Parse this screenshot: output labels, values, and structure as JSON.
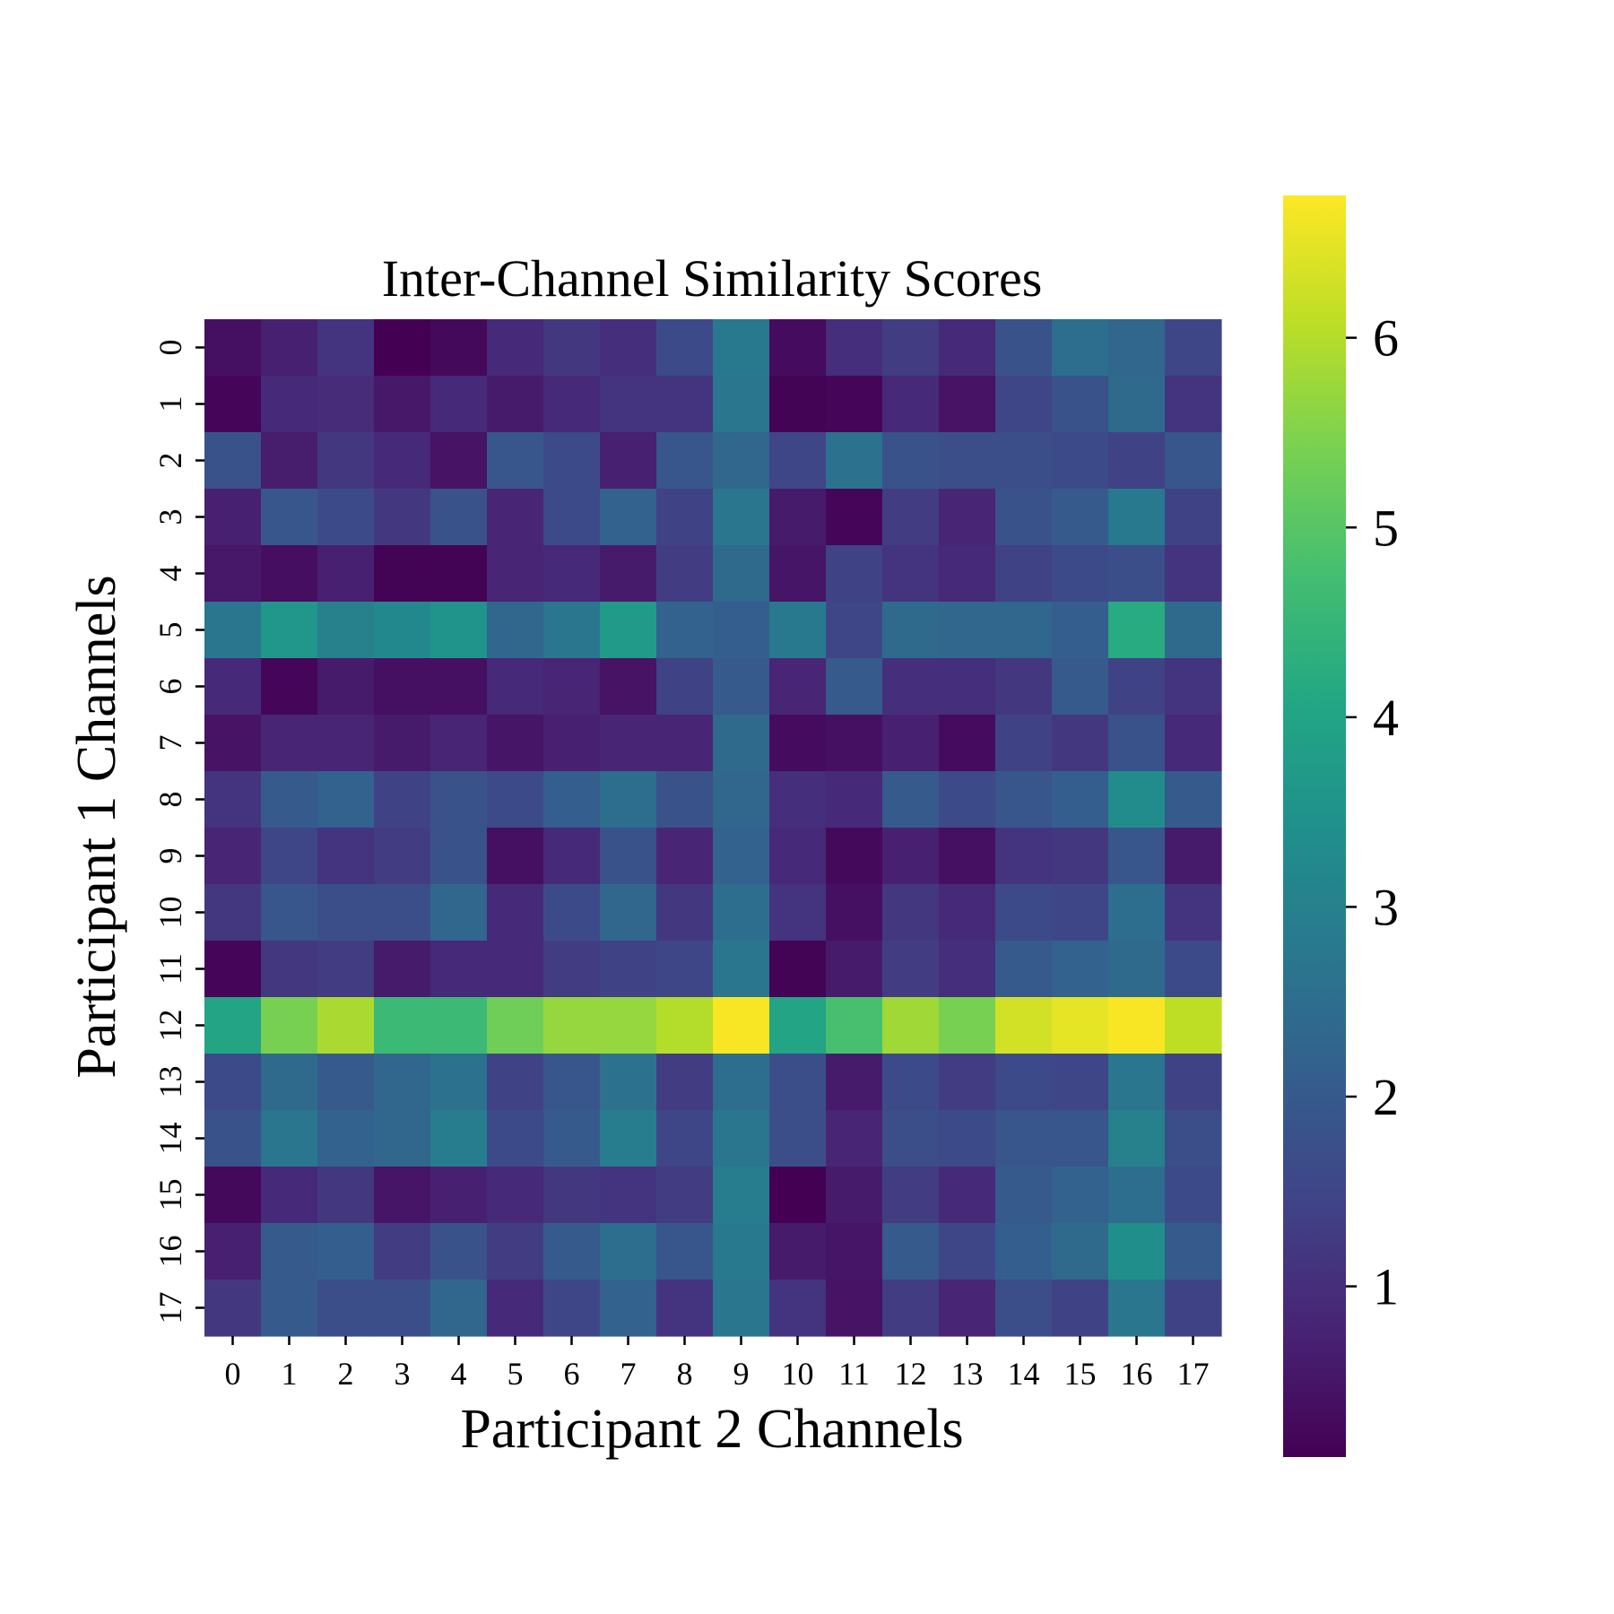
{
  "chart_data": {
    "type": "heatmap",
    "title": "Inter-Channel Similarity Scores",
    "xlabel": "Participant 2 Channels",
    "ylabel": "Participant 1 Channels",
    "x_categories": [
      "0",
      "1",
      "2",
      "3",
      "4",
      "5",
      "6",
      "7",
      "8",
      "9",
      "10",
      "11",
      "12",
      "13",
      "14",
      "15",
      "16",
      "17"
    ],
    "y_categories": [
      "0",
      "1",
      "2",
      "3",
      "4",
      "5",
      "6",
      "7",
      "8",
      "9",
      "10",
      "11",
      "12",
      "13",
      "14",
      "15",
      "16",
      "17"
    ],
    "colormap": "viridis",
    "vmin": 0.1,
    "vmax": 6.75,
    "colorbar_ticks": [
      1,
      2,
      3,
      4,
      5,
      6
    ],
    "values": [
      [
        0.4,
        0.7,
        1.1,
        0.1,
        0.25,
        0.9,
        1.2,
        1.0,
        1.6,
        2.8,
        0.3,
        1.0,
        1.3,
        0.9,
        1.8,
        2.5,
        2.3,
        1.5
      ],
      [
        0.2,
        0.9,
        0.95,
        0.55,
        0.9,
        0.6,
        0.9,
        1.1,
        1.1,
        2.7,
        0.15,
        0.2,
        0.9,
        0.45,
        1.5,
        1.8,
        2.4,
        1.1
      ],
      [
        1.8,
        0.65,
        1.2,
        0.9,
        0.45,
        1.9,
        1.6,
        0.7,
        1.9,
        2.3,
        1.5,
        2.6,
        1.8,
        1.7,
        1.7,
        1.6,
        1.4,
        1.9
      ],
      [
        0.7,
        1.9,
        1.6,
        1.2,
        1.8,
        0.8,
        1.6,
        2.2,
        1.4,
        2.7,
        0.6,
        0.2,
        1.3,
        0.8,
        1.8,
        2.0,
        2.8,
        1.4
      ],
      [
        0.55,
        0.35,
        0.7,
        0.15,
        0.15,
        0.8,
        0.9,
        0.6,
        1.3,
        2.4,
        0.5,
        1.4,
        1.1,
        0.9,
        1.4,
        1.6,
        1.7,
        1.1
      ],
      [
        2.7,
        3.6,
        3.0,
        3.2,
        3.5,
        2.3,
        2.7,
        3.7,
        2.2,
        2.1,
        2.8,
        1.5,
        2.4,
        2.3,
        2.3,
        2.1,
        4.2,
        2.4
      ],
      [
        0.9,
        0.2,
        0.6,
        0.4,
        0.4,
        0.9,
        0.8,
        0.45,
        1.4,
        2.0,
        0.8,
        2.0,
        1.0,
        1.0,
        1.2,
        2.0,
        1.4,
        1.1
      ],
      [
        0.45,
        0.8,
        0.8,
        0.6,
        0.8,
        0.5,
        0.7,
        0.8,
        0.8,
        2.4,
        0.3,
        0.4,
        0.7,
        0.3,
        1.4,
        1.2,
        1.8,
        0.9
      ],
      [
        1.1,
        2.0,
        2.2,
        1.4,
        1.8,
        1.6,
        2.1,
        2.5,
        1.8,
        2.3,
        1.0,
        0.9,
        2.0,
        1.6,
        1.9,
        2.1,
        3.3,
        2.0
      ],
      [
        0.8,
        1.5,
        1.1,
        1.3,
        1.8,
        0.4,
        0.9,
        1.8,
        0.8,
        2.2,
        0.9,
        0.25,
        0.7,
        0.4,
        1.1,
        1.2,
        1.9,
        0.6
      ],
      [
        1.2,
        1.9,
        1.7,
        1.7,
        2.3,
        0.9,
        1.6,
        2.3,
        1.2,
        2.5,
        1.1,
        0.4,
        1.2,
        0.9,
        1.6,
        1.5,
        2.5,
        1.1
      ],
      [
        0.2,
        1.2,
        1.3,
        0.6,
        0.9,
        0.9,
        1.3,
        1.4,
        1.5,
        2.7,
        0.15,
        0.6,
        1.3,
        1.0,
        2.0,
        2.2,
        2.4,
        1.6
      ],
      [
        4.0,
        5.4,
        5.9,
        4.6,
        4.6,
        5.3,
        5.7,
        5.7,
        6.0,
        6.7,
        4.0,
        4.8,
        5.8,
        5.4,
        6.3,
        6.5,
        6.7,
        6.1
      ],
      [
        1.6,
        2.4,
        2.0,
        2.3,
        2.6,
        1.4,
        1.9,
        2.6,
        1.3,
        2.5,
        1.7,
        0.6,
        1.6,
        1.3,
        1.6,
        1.5,
        2.7,
        1.4
      ],
      [
        1.8,
        2.7,
        2.2,
        2.3,
        2.9,
        1.6,
        2.0,
        2.9,
        1.5,
        2.7,
        1.7,
        0.8,
        1.7,
        1.6,
        1.9,
        1.9,
        3.0,
        1.7
      ],
      [
        0.25,
        0.9,
        1.2,
        0.5,
        0.7,
        0.9,
        1.2,
        1.1,
        1.3,
        2.9,
        0.1,
        0.6,
        1.3,
        0.9,
        2.0,
        2.2,
        2.5,
        1.6
      ],
      [
        0.7,
        2.0,
        2.1,
        1.3,
        1.8,
        1.3,
        2.0,
        2.5,
        1.9,
        2.8,
        0.6,
        0.5,
        2.0,
        1.5,
        2.1,
        2.4,
        3.4,
        2.0
      ],
      [
        1.2,
        2.0,
        1.7,
        1.7,
        2.3,
        0.9,
        1.5,
        2.2,
        1.1,
        2.7,
        1.1,
        0.45,
        1.3,
        0.8,
        1.7,
        1.4,
        2.7,
        1.4
      ]
    ]
  }
}
